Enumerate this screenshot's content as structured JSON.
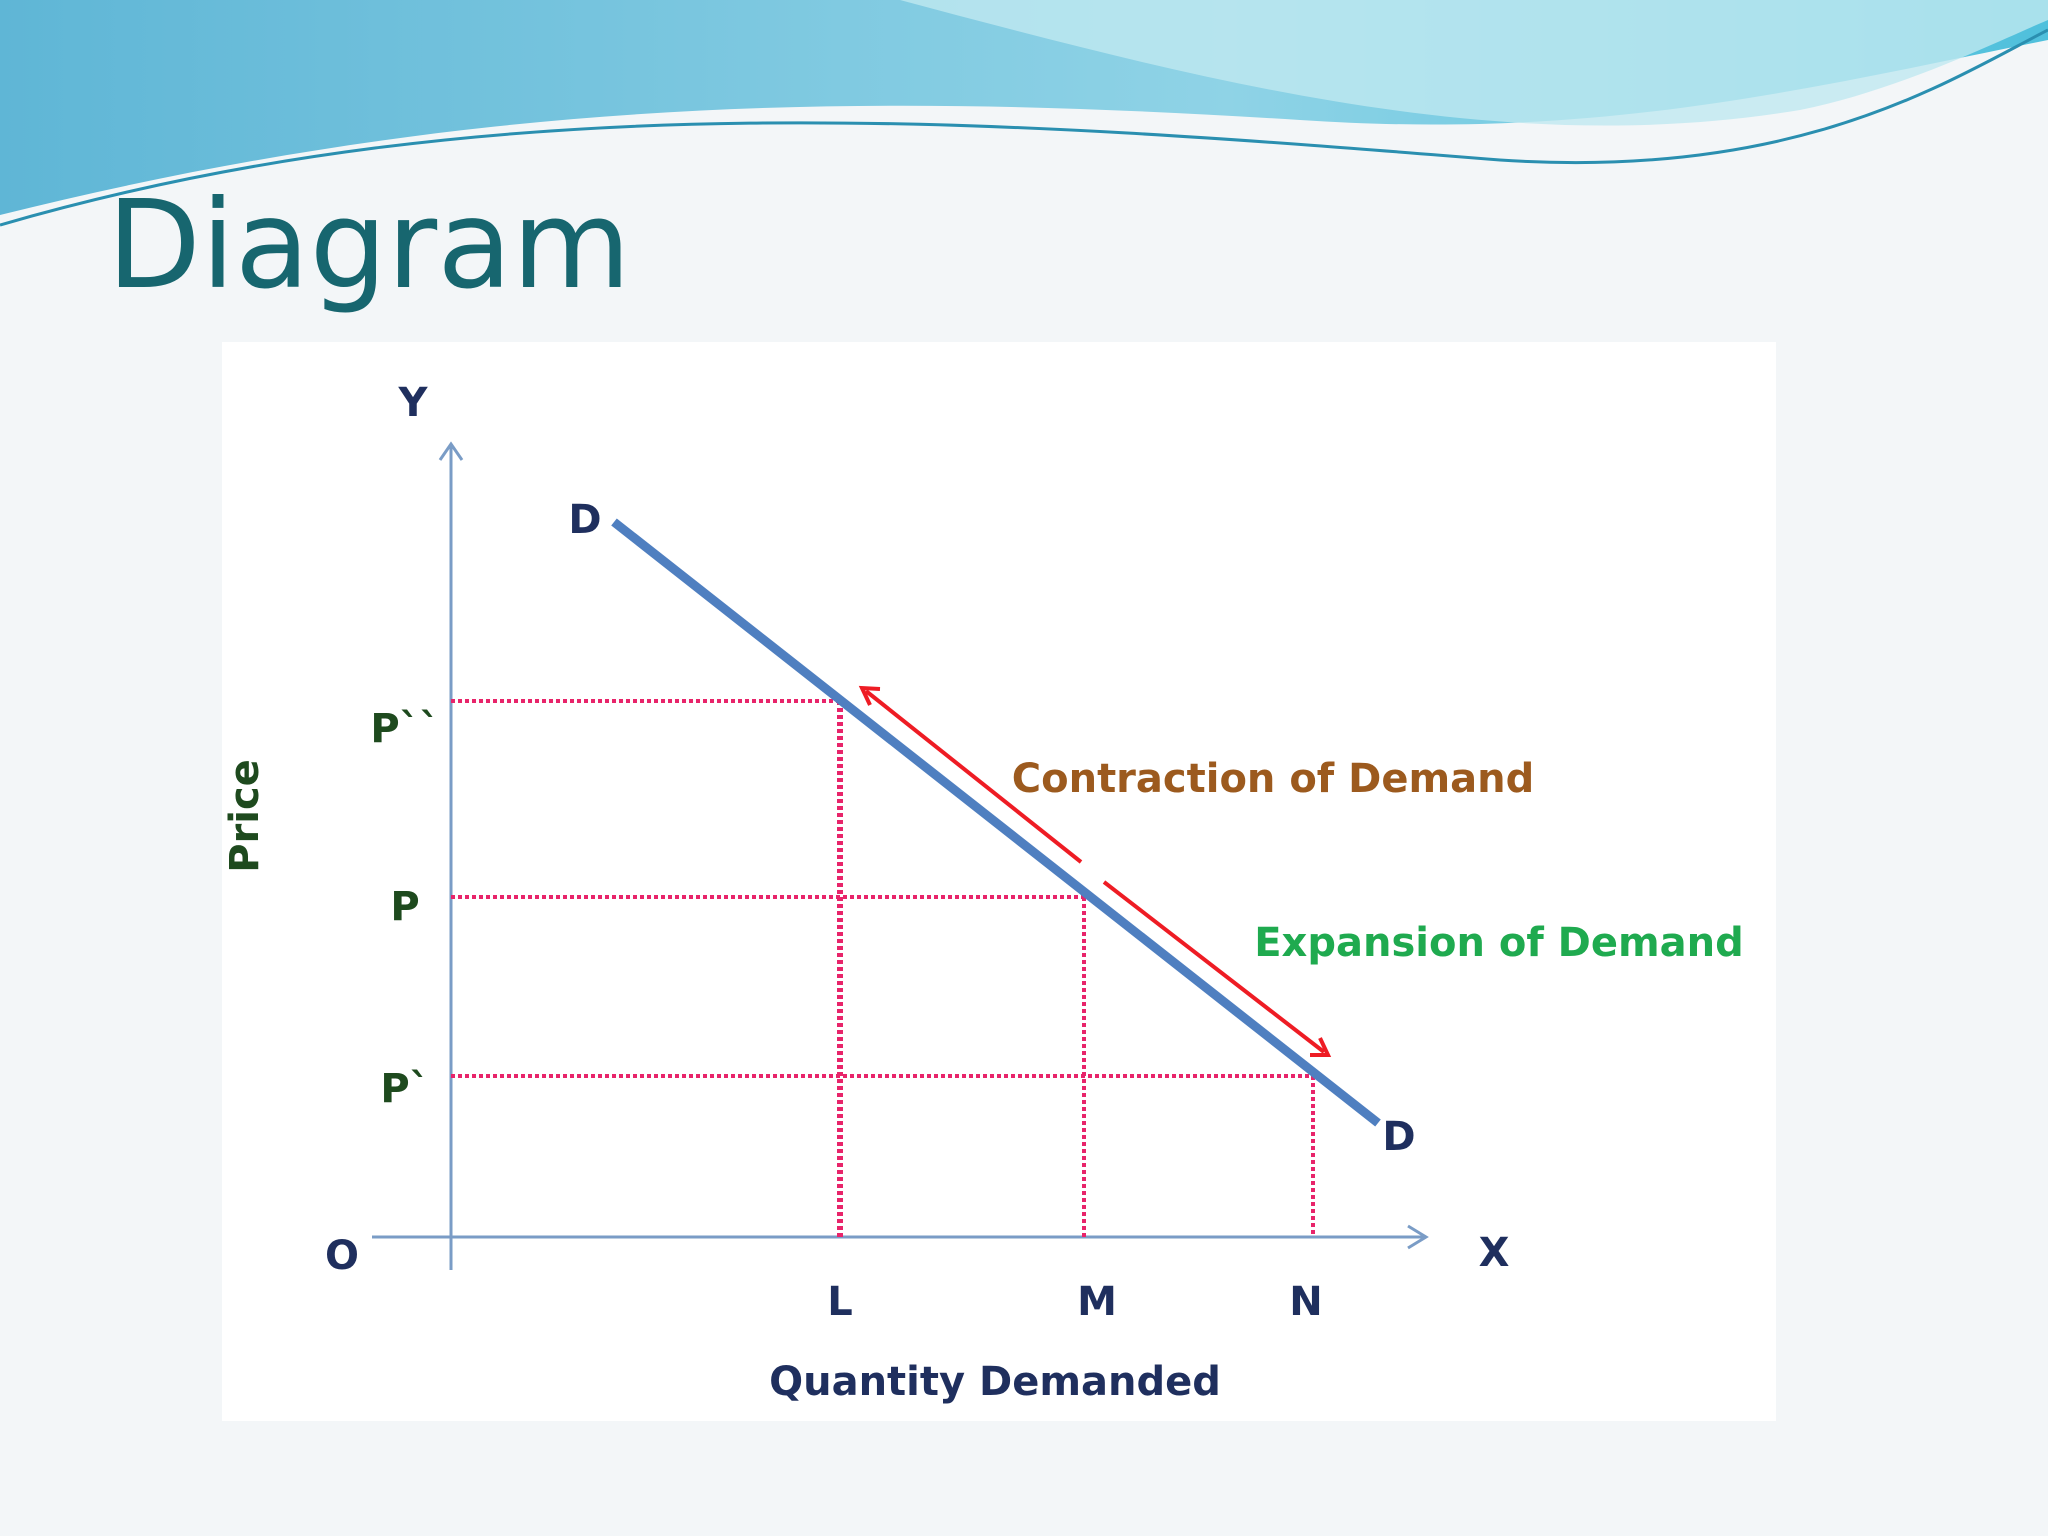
{
  "header": {
    "title": "Diagram"
  },
  "diagram": {
    "axes": {
      "y": "Y",
      "x": "X",
      "origin": "O",
      "y_title": "Price",
      "x_title": "Quantity Demanded"
    },
    "curve_labels": [
      "D",
      "D"
    ],
    "price_levels": [
      "P``",
      "P",
      "P`"
    ],
    "quantity_levels": [
      "L",
      "M",
      "N"
    ],
    "annotations": {
      "contraction": "Contraction of Demand",
      "expansion": "Expansion of Demand"
    }
  }
}
